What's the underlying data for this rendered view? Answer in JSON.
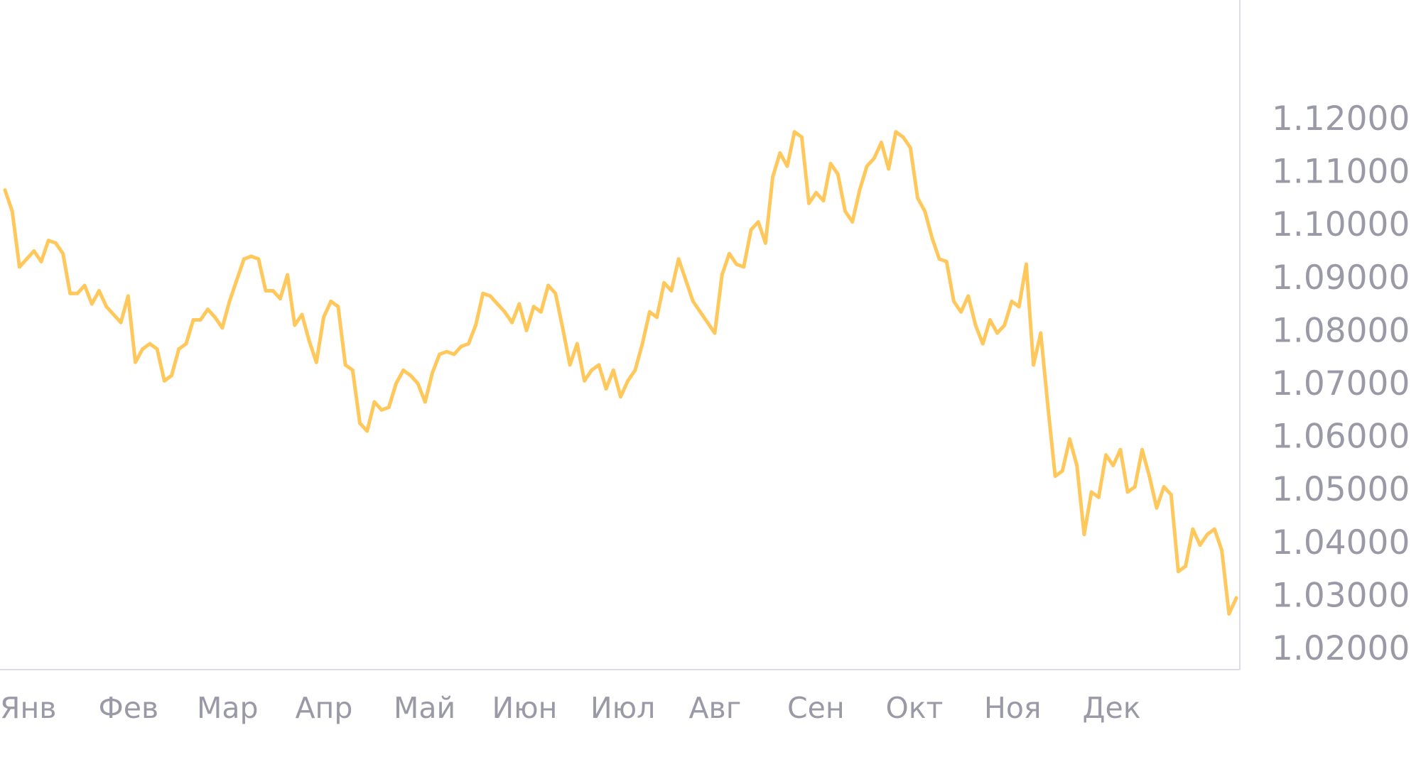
{
  "chart_data": {
    "type": "line",
    "title": "",
    "xlabel": "",
    "ylabel": "",
    "colors": {
      "line": "#ffc85c",
      "axis": "#dcdce2",
      "tick_text": "#9a9aa6",
      "background": "#ffffff"
    },
    "grid": false,
    "y_axis_side": "right",
    "ylim": [
      1.0175,
      1.1425
    ],
    "x_ticks": [
      "Янв",
      "Фев",
      "Мар",
      "Апр",
      "Май",
      "Июн",
      "Июл",
      "Авг",
      "Сен",
      "Окт",
      "Ноя",
      "Дек"
    ],
    "y_ticks": [
      "1.12000",
      "1.11000",
      "1.10000",
      "1.09000",
      "1.08000",
      "1.07000",
      "1.06000",
      "1.05000",
      "1.04000",
      "1.03000",
      "1.02000"
    ],
    "series": [
      {
        "values": [
          1.1065,
          1.1025,
          1.092,
          1.0935,
          1.095,
          1.093,
          1.097,
          1.0965,
          1.0945,
          1.087,
          1.087,
          1.0885,
          1.085,
          1.0875,
          1.0845,
          1.083,
          1.0815,
          1.0865,
          1.074,
          1.0765,
          1.0775,
          1.0765,
          1.0705,
          1.0715,
          1.0765,
          1.0775,
          1.082,
          1.082,
          1.084,
          1.0825,
          1.0805,
          1.0855,
          1.0895,
          1.0935,
          1.094,
          1.0935,
          1.0875,
          1.0875,
          1.086,
          1.0905,
          1.081,
          1.083,
          1.078,
          1.074,
          1.0825,
          1.0855,
          1.0845,
          1.0735,
          1.0725,
          1.0625,
          1.061,
          1.0665,
          1.065,
          1.0655,
          1.07,
          1.0725,
          1.0715,
          1.07,
          1.0665,
          1.072,
          1.0755,
          1.076,
          1.0755,
          1.077,
          1.0775,
          1.081,
          1.087,
          1.0865,
          1.085,
          1.0835,
          1.0815,
          1.085,
          1.08,
          1.0845,
          1.0835,
          1.0885,
          1.087,
          1.0805,
          1.0735,
          1.0775,
          1.0705,
          1.0725,
          1.0735,
          1.069,
          1.0725,
          1.0675,
          1.0705,
          1.0725,
          1.0775,
          1.0835,
          1.0825,
          1.089,
          1.0875,
          1.0935,
          1.0895,
          1.0855,
          1.0835,
          1.0815,
          1.0795,
          1.0905,
          1.0945,
          1.0925,
          1.092,
          1.099,
          1.1005,
          1.0965,
          1.109,
          1.1135,
          1.111,
          1.1175,
          1.1165,
          1.104,
          1.106,
          1.1045,
          1.1115,
          1.1095,
          1.1025,
          1.1005,
          1.1065,
          1.111,
          1.1125,
          1.1155,
          1.1105,
          1.1175,
          1.1165,
          1.1145,
          1.105,
          1.1025,
          1.0975,
          1.0935,
          1.093,
          1.0855,
          1.0835,
          1.0865,
          1.081,
          1.0775,
          1.082,
          1.0795,
          1.081,
          1.0855,
          1.0845,
          1.0925,
          1.0735,
          1.0795,
          1.0655,
          1.0525,
          1.0535,
          1.0595,
          1.0545,
          1.0415,
          1.0495,
          1.0485,
          1.0565,
          1.0545,
          1.0575,
          1.0495,
          1.0505,
          1.0575,
          1.0525,
          1.0465,
          1.0505,
          1.049,
          1.0345,
          1.0355,
          1.0425,
          1.0395,
          1.0415,
          1.0425,
          1.0385,
          1.0265,
          1.0295
        ]
      }
    ]
  }
}
